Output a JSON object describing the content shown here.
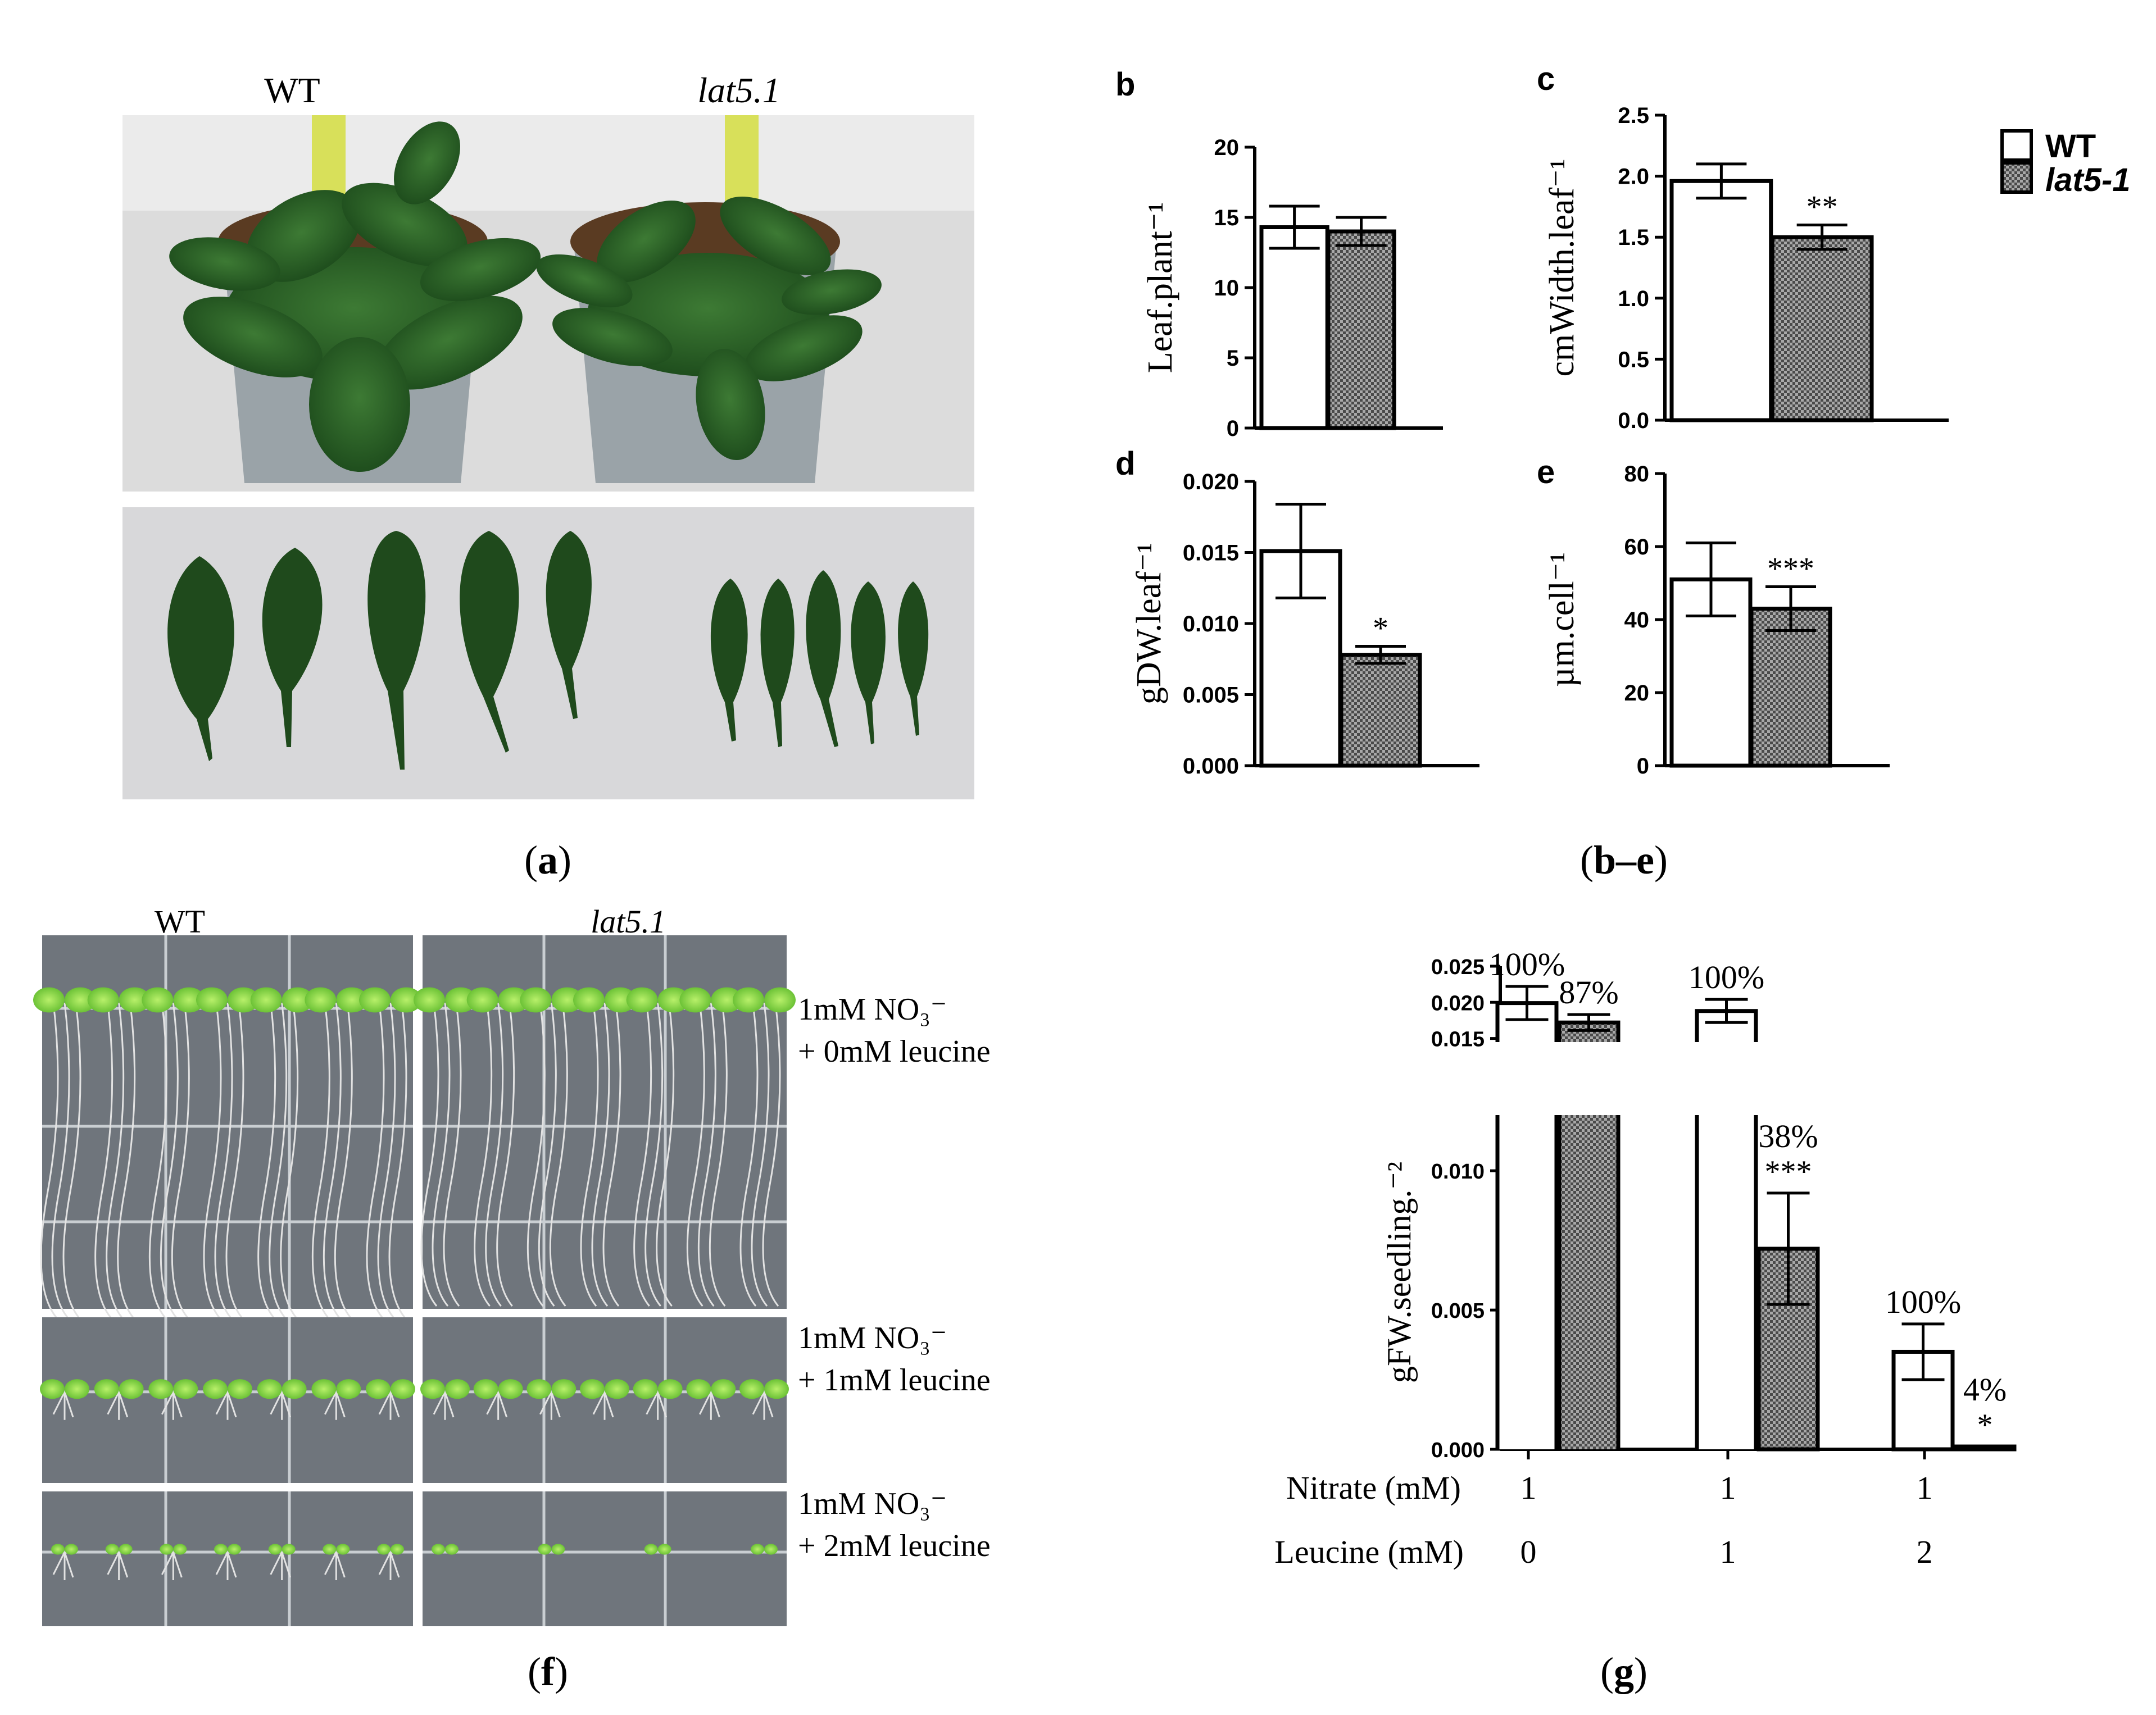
{
  "panel_a": {
    "wt_label": "WT",
    "mutant_label": "lat5.1",
    "caption_letter": "a"
  },
  "panel_be": {
    "caption_letters": "b–e",
    "legend": {
      "wt": "WT",
      "mutant": "lat5-1"
    }
  },
  "panel_f": {
    "wt_label": "WT",
    "mutant_label": "lat5.1",
    "caption_letter": "f",
    "conditions": [
      {
        "line1": "1mM NO₃⁻",
        "line2": "+ 0mM leucine"
      },
      {
        "line1": "1mM NO₃⁻",
        "line2": "+ 1mM leucine"
      },
      {
        "line1": "1mM NO₃⁻",
        "line2": "+ 2mM leucine"
      }
    ]
  },
  "panel_g": {
    "caption_letter": "g"
  },
  "colors": {
    "wt_bar": "#ffffff",
    "mutant_bar": "#8c8c8c",
    "axis": "#000000",
    "photo_bg_a": "#d9d9d9",
    "plate_bg": "#6e747c"
  },
  "chart_data": [
    {
      "id": "b",
      "type": "bar",
      "letter": "b",
      "categories": [
        "WT",
        "lat5-1"
      ],
      "values": [
        14.3,
        14.0
      ],
      "errors": [
        1.5,
        1.0
      ],
      "ylabel": "Leaf.plant⁻¹",
      "ylim": [
        0,
        20
      ],
      "yticks": [
        "0",
        "5",
        "10",
        "15",
        "20"
      ],
      "significance": [
        "",
        ""
      ]
    },
    {
      "id": "c",
      "type": "bar",
      "letter": "c",
      "categories": [
        "WT",
        "lat5-1"
      ],
      "values": [
        1.96,
        1.5
      ],
      "errors": [
        0.14,
        0.1
      ],
      "ylabel": "cmWidth.leaf⁻¹",
      "ylim": [
        0,
        2.5
      ],
      "yticks": [
        "0.0",
        "0.5",
        "1.0",
        "1.5",
        "2.0",
        "2.5"
      ],
      "significance": [
        "",
        "**"
      ]
    },
    {
      "id": "d",
      "type": "bar",
      "letter": "d",
      "categories": [
        "WT",
        "lat5-1"
      ],
      "values": [
        0.0151,
        0.0078
      ],
      "errors": [
        0.0033,
        0.0006
      ],
      "ylabel": "gDW.leaf⁻¹",
      "ylim": [
        0,
        0.02
      ],
      "yticks": [
        "0.000",
        "0.005",
        "0.010",
        "0.015",
        "0.020"
      ],
      "significance": [
        "",
        "*"
      ]
    },
    {
      "id": "e",
      "type": "bar",
      "letter": "e",
      "categories": [
        "WT",
        "lat5-1"
      ],
      "values": [
        51,
        43
      ],
      "errors": [
        10,
        6
      ],
      "ylabel": "µm.cell⁻¹",
      "ylim": [
        0,
        80
      ],
      "yticks": [
        "0",
        "20",
        "40",
        "60",
        "80"
      ],
      "significance": [
        "",
        "***"
      ]
    },
    {
      "id": "g",
      "type": "bar",
      "groups": [
        {
          "nitrate": "1",
          "leucine": "0"
        },
        {
          "nitrate": "1",
          "leucine": "1"
        },
        {
          "nitrate": "1",
          "leucine": "2"
        }
      ],
      "series": [
        {
          "values": [
            0.0199,
            0.0188,
            0.0035
          ],
          "errors": [
            0.0023,
            0.0016,
            0.001
          ],
          "percent": [
            "100%",
            "100%",
            "100%"
          ],
          "significance": [
            "",
            "",
            ""
          ]
        },
        {
          "values": [
            0.0172,
            0.0072,
            0.0001
          ],
          "errors": [
            0.0011,
            0.002,
            0.0
          ],
          "percent": [
            "87%",
            "38%",
            "4%"
          ],
          "significance": [
            "",
            "***",
            "*"
          ]
        }
      ],
      "ylabel": "gFW.seedling.⁻²",
      "ylim": [
        0,
        0.025
      ],
      "axis_break": [
        0.012,
        0.0145
      ],
      "lower_ticks": [
        "0.000",
        "0.005",
        "0.010"
      ],
      "upper_ticks": [
        "0.015",
        "0.020",
        "0.025"
      ],
      "row_labels": {
        "nitrate": "Nitrate (mM)",
        "leucine": "Leucine (mM)"
      }
    }
  ]
}
